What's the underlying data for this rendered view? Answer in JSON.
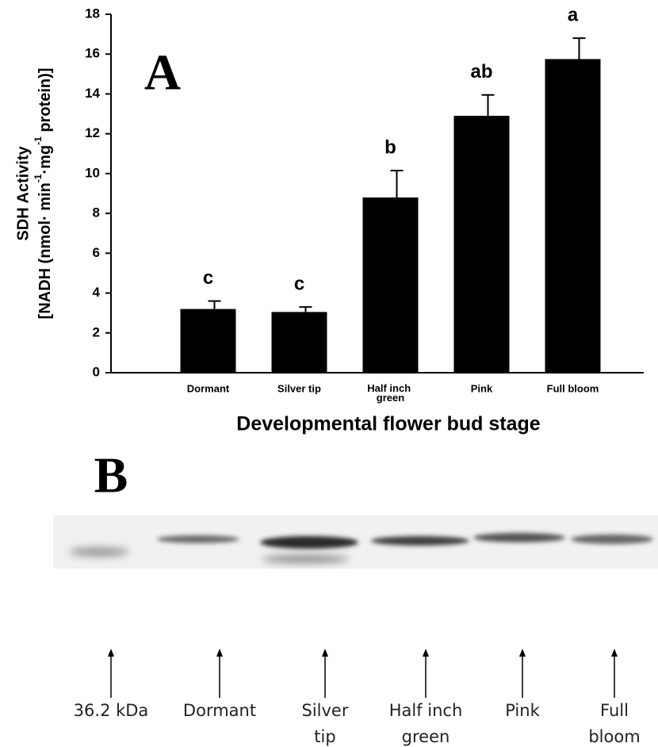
{
  "chart_data": {
    "type": "bar",
    "title": "A",
    "categories": [
      "Dormant",
      "Silver tip",
      "Half inch green",
      "Pink",
      "Full bloom"
    ],
    "values": [
      3.2,
      3.05,
      8.8,
      12.9,
      15.75
    ],
    "errors": [
      0.4,
      0.25,
      1.35,
      1.05,
      1.05
    ],
    "annotations": [
      "c",
      "c",
      "b",
      "ab",
      "a"
    ],
    "color": "#000000",
    "x_label": "Developmental flower bud stage",
    "y_label": {
      "line1": "SDH Activity",
      "line2": [
        "[NADH (nmol· min",
        "-1",
        "·mg",
        "-1",
        " protein)]"
      ]
    },
    "ylim": [
      0,
      18
    ],
    "yticks": [
      0,
      2,
      4,
      6,
      8,
      10,
      12,
      14,
      16,
      18
    ],
    "grid": false
  },
  "blot": {
    "title": "B",
    "lanes": [
      [
        "36.2 kDa"
      ],
      [
        "Dormant"
      ],
      [
        "Silver",
        "tip"
      ],
      [
        "Half inch",
        "green"
      ],
      [
        "Pink"
      ],
      [
        "Full",
        "bloom"
      ]
    ]
  }
}
